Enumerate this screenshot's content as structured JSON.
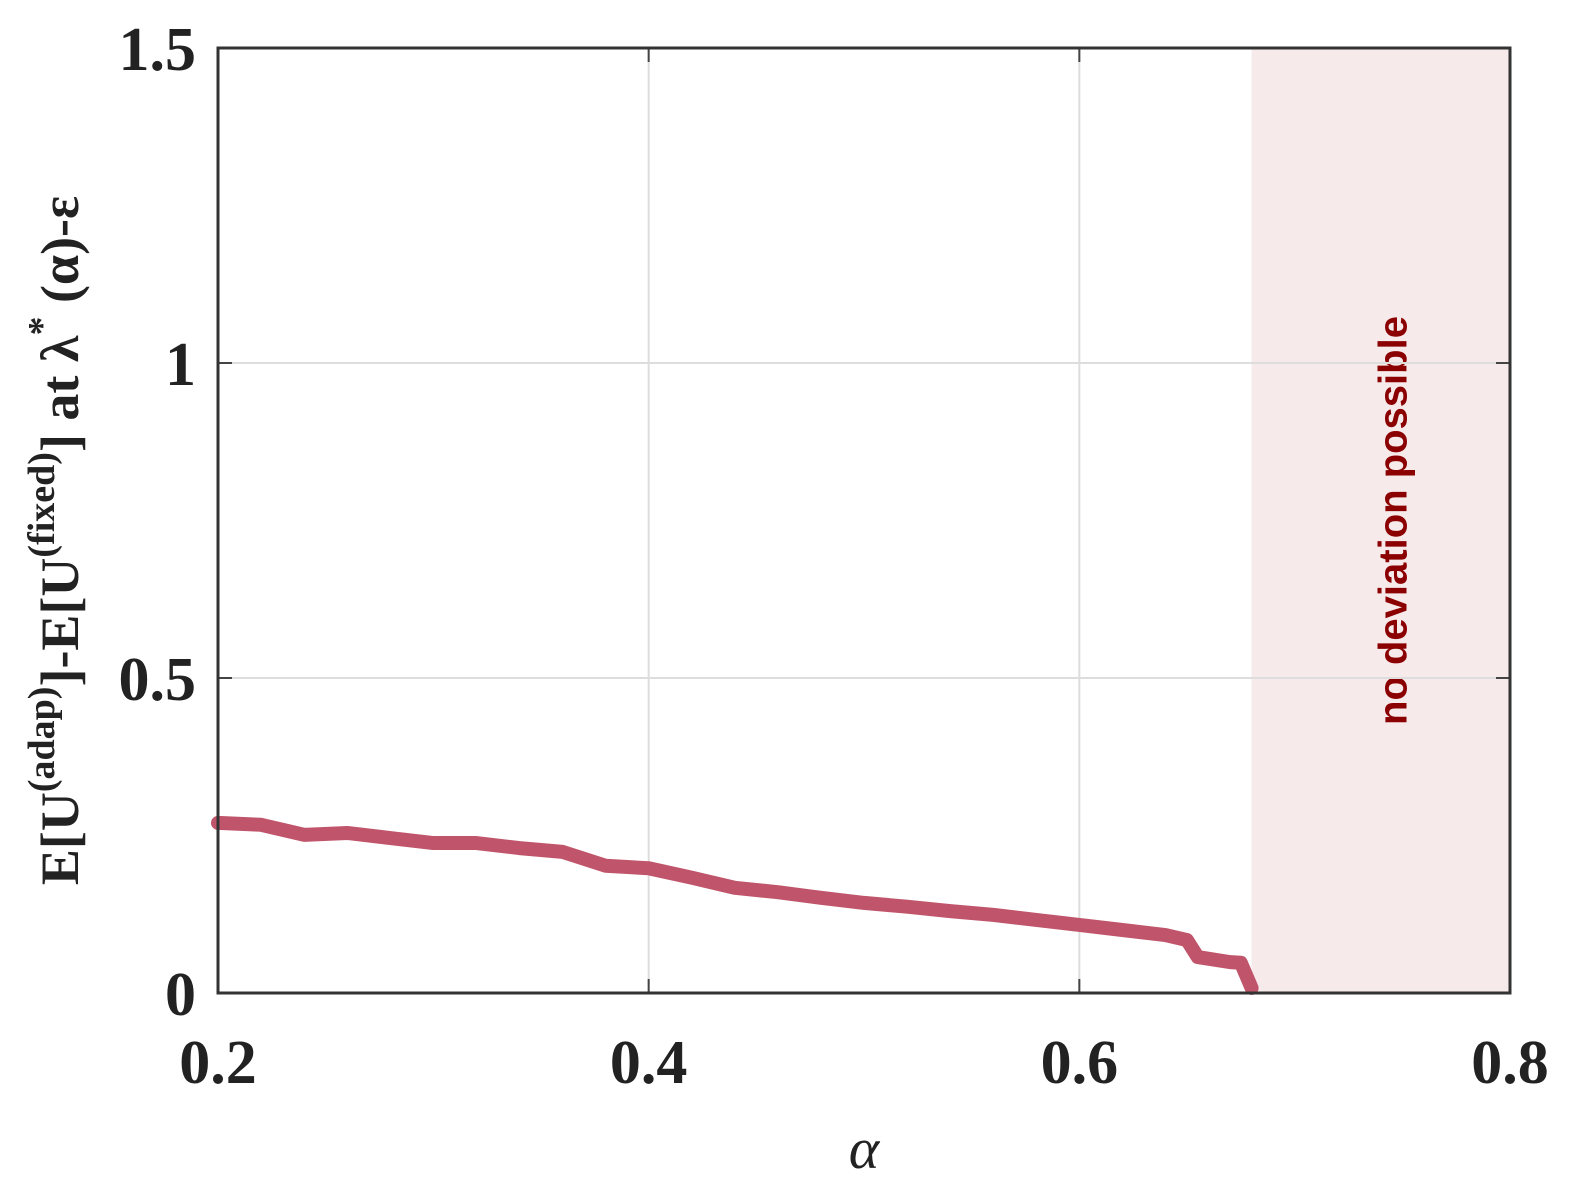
{
  "chart_data": {
    "type": "line",
    "x_label": "α",
    "y_label": [
      "E[U",
      "(adap)",
      "]-E[U",
      "(fixed)",
      "] at λ",
      "*",
      " (α)-ε"
    ],
    "x": [
      0.2,
      0.22,
      0.24,
      0.26,
      0.28,
      0.3,
      0.32,
      0.34,
      0.36,
      0.38,
      0.4,
      0.42,
      0.44,
      0.46,
      0.48,
      0.5,
      0.52,
      0.54,
      0.56,
      0.58,
      0.6,
      0.62,
      0.64,
      0.65,
      0.655,
      0.67,
      0.675,
      0.68
    ],
    "series": [
      {
        "color": "#c0546a",
        "values": [
          0.27,
          0.267,
          0.251,
          0.254,
          0.246,
          0.238,
          0.238,
          0.23,
          0.224,
          0.202,
          0.198,
          0.183,
          0.167,
          0.16,
          0.151,
          0.143,
          0.137,
          0.13,
          0.124,
          0.116,
          0.108,
          0.1,
          0.092,
          0.084,
          0.057,
          0.049,
          0.048,
          0.008
        ]
      }
    ],
    "shaded_region": {
      "x": [
        0.68,
        0.8
      ],
      "color": "#f6eaea",
      "label": "no deviation possible",
      "label_color": "#8b0000"
    },
    "xlim": [
      0.2,
      0.8
    ],
    "xticks": [
      0.2,
      0.4,
      0.6,
      0.8
    ],
    "ylim": [
      0,
      1.5
    ],
    "yticks": [
      0,
      0.5,
      1,
      1.5
    ],
    "grid": true
  }
}
